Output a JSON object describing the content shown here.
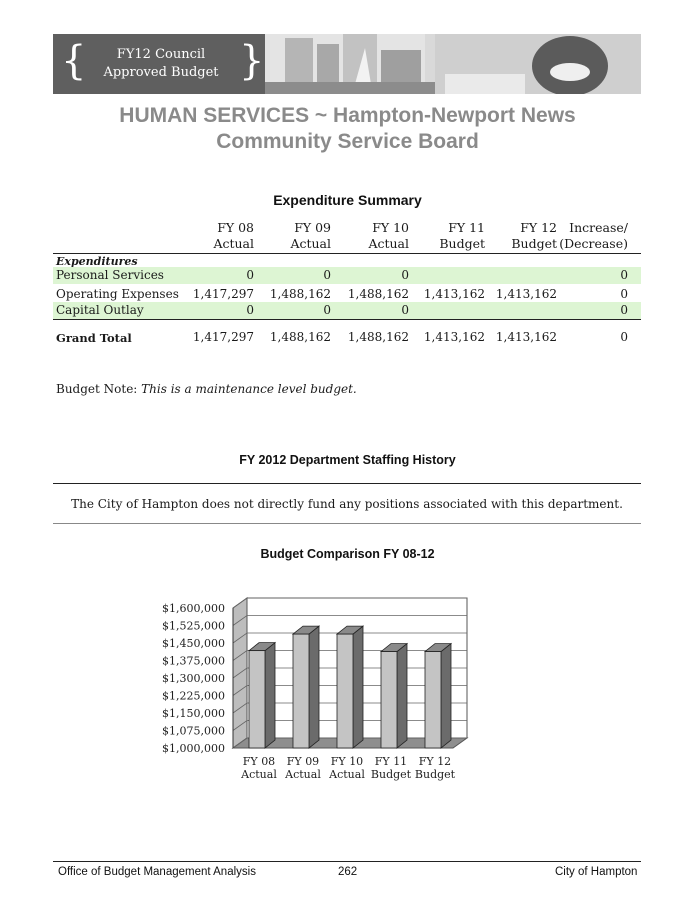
{
  "banner": {
    "line1": "FY12 Council",
    "line2": "Approved Budget",
    "brace_left": "{",
    "brace_right": "}"
  },
  "page_title": {
    "line1": "HUMAN SERVICES ~ Hampton-Newport News",
    "line2": "Community Service Board"
  },
  "expenditure_summary": {
    "title": "Expenditure Summary",
    "columns": [
      {
        "line1": "FY 08",
        "line2": "Actual"
      },
      {
        "line1": "FY 09",
        "line2": "Actual"
      },
      {
        "line1": "FY 10",
        "line2": "Actual"
      },
      {
        "line1": "FY 11",
        "line2": "Budget"
      },
      {
        "line1": "FY 12",
        "line2": "Budget"
      },
      {
        "line1": "Increase/",
        "line2": "(Decrease)"
      }
    ],
    "section_label": "Expenditures",
    "rows": [
      {
        "label": "Personal Services",
        "values": [
          "0",
          "0",
          "0",
          "",
          "",
          "0"
        ],
        "highlight": true
      },
      {
        "label": "Operating Expenses",
        "values": [
          "1,417,297",
          "1,488,162",
          "1,488,162",
          "1,413,162",
          "1,413,162",
          "0"
        ],
        "highlight": false
      },
      {
        "label": "Capital Outlay",
        "values": [
          "0",
          "0",
          "0",
          "",
          "",
          "0"
        ],
        "highlight": true
      }
    ],
    "total": {
      "label": "Grand Total",
      "values": [
        "1,417,297",
        "1,488,162",
        "1,488,162",
        "1,413,162",
        "1,413,162",
        "0"
      ]
    }
  },
  "budget_note": {
    "label": "Budget Note:",
    "text": "This is a maintenance level budget."
  },
  "staffing": {
    "title": "FY 2012 Department Staffing History",
    "text": "The City of Hampton does not directly fund any positions associated with this department."
  },
  "chart_data": {
    "type": "bar",
    "title": "Budget Comparison FY 08-12",
    "categories": [
      [
        "FY 08",
        "Actual"
      ],
      [
        "FY 09",
        "Actual"
      ],
      [
        "FY 10",
        "Actual"
      ],
      [
        "FY 11",
        "Budget"
      ],
      [
        "FY 12",
        "Budget"
      ]
    ],
    "values": [
      1417297,
      1488162,
      1488162,
      1413162,
      1413162
    ],
    "ylim": [
      1000000,
      1600000
    ],
    "yticks": [
      1000000,
      1075000,
      1150000,
      1225000,
      1300000,
      1375000,
      1450000,
      1525000,
      1600000
    ],
    "ytick_labels": [
      "$1,000,000",
      "$1,075,000",
      "$1,150,000",
      "$1,225,000",
      "$1,300,000",
      "$1,375,000",
      "$1,450,000",
      "$1,525,000",
      "$1,600,000"
    ],
    "xlabel": "",
    "ylabel": "",
    "grid": true,
    "style": "3d",
    "bar_color": "#c4c4c4"
  },
  "footer": {
    "left": "Office of Budget Management Analysis",
    "page": "262",
    "right": "City of Hampton"
  }
}
